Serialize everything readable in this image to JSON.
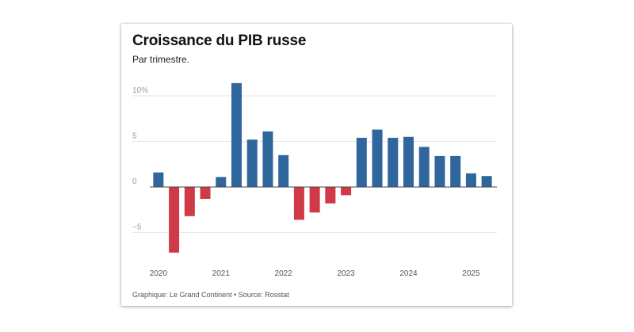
{
  "chart_data": {
    "type": "bar",
    "title": "Croissance du PIB russe",
    "subtitle": "Par trimestre.",
    "source": "Graphique: Le Grand Continent • Source: Rosstat",
    "xlabel": "",
    "ylabel": "",
    "ylim": [
      -8,
      12
    ],
    "yticks": [
      {
        "value": 10,
        "label": "10%"
      },
      {
        "value": 5,
        "label": "5"
      },
      {
        "value": 0,
        "label": "0"
      },
      {
        "value": -5,
        "label": "−5"
      }
    ],
    "xtick_labels": [
      "2020",
      "2021",
      "2022",
      "2023",
      "2024",
      "2025"
    ],
    "xtick_positions": [
      0,
      4,
      8,
      12,
      16,
      20
    ],
    "categories": [
      "2020 T1",
      "2020 T2",
      "2020 T3",
      "2020 T4",
      "2021 T1",
      "2021 T2",
      "2021 T3",
      "2021 T4",
      "2022 T1",
      "2022 T2",
      "2022 T3",
      "2022 T4",
      "2023 T1",
      "2023 T2",
      "2023 T3",
      "2023 T4",
      "2024 T1",
      "2024 T2",
      "2024 T3",
      "2024 T4",
      "2025 T1",
      "2025 T2"
    ],
    "values": [
      1.6,
      -7.2,
      -3.2,
      -1.3,
      1.1,
      11.4,
      5.2,
      6.1,
      3.5,
      -3.6,
      -2.8,
      -1.8,
      -0.9,
      5.4,
      6.3,
      5.4,
      5.5,
      4.4,
      3.4,
      3.4,
      1.5,
      1.2
    ],
    "colors": {
      "positive": "#2f669c",
      "negative": "#d03a48",
      "grid": "#e6e6e6",
      "zero": "#444444",
      "tick_text": "#9a9a9a",
      "x_text": "#555555"
    }
  }
}
